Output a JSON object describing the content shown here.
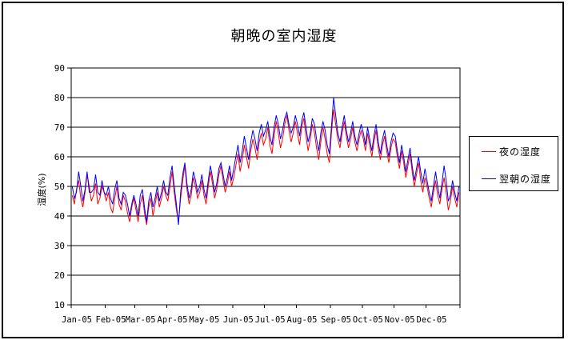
{
  "window": {
    "background": "#FFFFFF",
    "frame_border_color": "#000000"
  },
  "chart_data": {
    "type": "line",
    "title": "朝晩の室内湿度",
    "ylabel": "湿度(%)",
    "xlabel": "",
    "ylim": [
      10,
      90
    ],
    "yticks": [
      10,
      20,
      30,
      40,
      50,
      60,
      70,
      80,
      90
    ],
    "grid": "horizontal",
    "legend_position": "right",
    "x_labels": [
      "Jan-05",
      "Feb-05",
      "Mar-05",
      "Apr-05",
      "May-05",
      "Jun-05",
      "Jul-05",
      "Aug-05",
      "Sep-05",
      "Oct-05",
      "Nov-05",
      "Dec-05"
    ],
    "points_per_month": [
      16,
      14,
      15,
      15,
      16,
      15,
      15,
      16,
      15,
      15,
      15,
      16
    ],
    "series": [
      {
        "name": "夜の湿度",
        "color": "#FF0000",
        "values": [
          47,
          44,
          49,
          52,
          46,
          43,
          48,
          54,
          50,
          45,
          47,
          51,
          44,
          46,
          50,
          48,
          45,
          48,
          43,
          41,
          46,
          50,
          44,
          42,
          47,
          45,
          41,
          38,
          43,
          46,
          42,
          38,
          44,
          47,
          41,
          37,
          43,
          46,
          40,
          44,
          48,
          43,
          46,
          50,
          47,
          45,
          50,
          55,
          48,
          42,
          38,
          46,
          52,
          57,
          49,
          44,
          47,
          53,
          50,
          46,
          48,
          52,
          47,
          44,
          50,
          55,
          51,
          46,
          49,
          54,
          57,
          52,
          48,
          51,
          55,
          50,
          53,
          57,
          61,
          55,
          59,
          64,
          60,
          56,
          62,
          66,
          63,
          59,
          65,
          68,
          64,
          66,
          70,
          64,
          61,
          67,
          72,
          68,
          63,
          66,
          71,
          74,
          69,
          65,
          68,
          72,
          68,
          64,
          70,
          73,
          67,
          62,
          66,
          71,
          68,
          63,
          59,
          65,
          70,
          66,
          61,
          58,
          68,
          76,
          71,
          66,
          63,
          68,
          72,
          67,
          63,
          66,
          70,
          65,
          62,
          66,
          69,
          66,
          62,
          68,
          64,
          60,
          65,
          69,
          63,
          59,
          64,
          67,
          62,
          58,
          63,
          66,
          65,
          60,
          56,
          62,
          58,
          53,
          57,
          61,
          55,
          50,
          54,
          58,
          52,
          48,
          53,
          50,
          46,
          43,
          48,
          52,
          47,
          44,
          49,
          53,
          48,
          42,
          45,
          50,
          46,
          43,
          48
        ]
      },
      {
        "name": "翌朝の湿度",
        "color": "#0000FF",
        "values": [
          50,
          46,
          48,
          55,
          50,
          45,
          49,
          55,
          48,
          48,
          49,
          54,
          48,
          47,
          52,
          48,
          47,
          50,
          46,
          44,
          49,
          52,
          46,
          44,
          48,
          47,
          44,
          40,
          44,
          47,
          44,
          40,
          47,
          49,
          43,
          38,
          45,
          48,
          43,
          46,
          50,
          45,
          48,
          52,
          48,
          47,
          53,
          57,
          50,
          44,
          37,
          48,
          54,
          58,
          51,
          46,
          49,
          55,
          52,
          48,
          50,
          54,
          49,
          46,
          52,
          57,
          53,
          48,
          51,
          56,
          58,
          54,
          50,
          53,
          57,
          52,
          56,
          60,
          64,
          58,
          62,
          67,
          63,
          59,
          65,
          69,
          66,
          62,
          68,
          71,
          67,
          69,
          72,
          67,
          64,
          70,
          74,
          71,
          66,
          69,
          73,
          75,
          71,
          68,
          70,
          74,
          71,
          67,
          72,
          75,
          70,
          65,
          68,
          73,
          71,
          66,
          62,
          68,
          72,
          69,
          64,
          61,
          70,
          80,
          74,
          68,
          65,
          70,
          74,
          69,
          65,
          68,
          72,
          67,
          64,
          68,
          71,
          68,
          64,
          70,
          66,
          62,
          67,
          71,
          65,
          61,
          66,
          69,
          64,
          60,
          65,
          68,
          67,
          62,
          58,
          64,
          60,
          55,
          59,
          63,
          57,
          52,
          56,
          60,
          55,
          51,
          56,
          52,
          48,
          45,
          50,
          55,
          50,
          46,
          51,
          57,
          52,
          45,
          47,
          52,
          48,
          45,
          50
        ]
      }
    ]
  }
}
